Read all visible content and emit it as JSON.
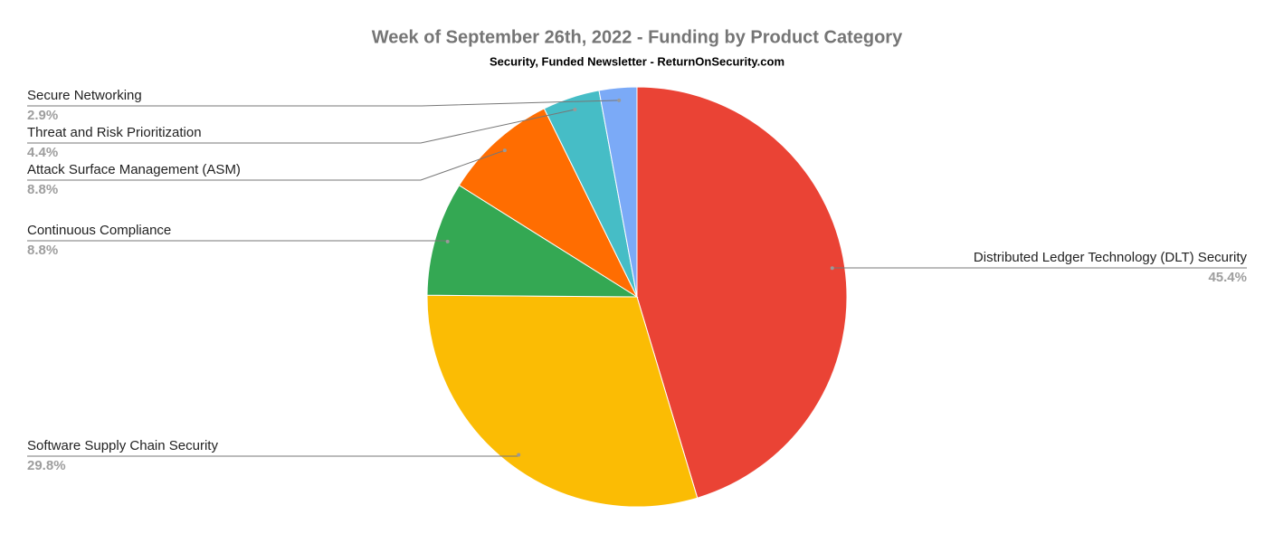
{
  "chart_data": {
    "type": "pie",
    "title": "Week of September 26th, 2022 - Funding by Product Category",
    "subtitle": "Security, Funded Newsletter - ReturnOnSecurity.com",
    "categories": [
      "Distributed Ledger Technology (DLT) Security",
      "Software Supply Chain Security",
      "Continuous Compliance",
      "Attack Surface Management (ASM)",
      "Threat and Risk Prioritization",
      "Secure Networking"
    ],
    "values": [
      45.4,
      29.8,
      8.8,
      8.8,
      4.4,
      2.9
    ],
    "value_labels": [
      "45.4%",
      "29.8%",
      "8.8%",
      "8.8%",
      "4.4%",
      "2.9%"
    ],
    "colors": [
      "#ea4335",
      "#fbbc04",
      "#34a853",
      "#ff6d01",
      "#46bdc6",
      "#7baaf7"
    ]
  }
}
